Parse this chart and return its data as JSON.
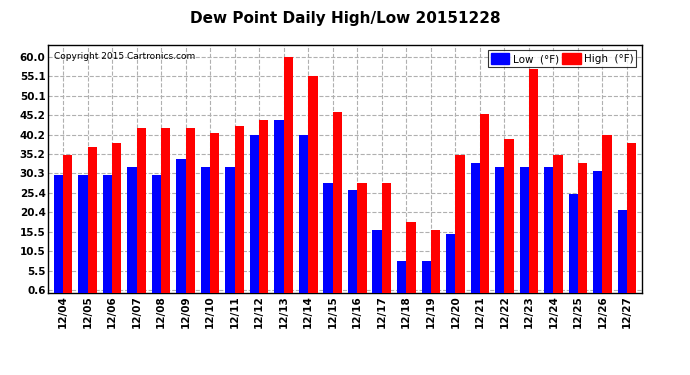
{
  "title": "Dew Point Daily High/Low 20151228",
  "copyright": "Copyright 2015 Cartronics.com",
  "dates": [
    "12/04",
    "12/05",
    "12/06",
    "12/07",
    "12/08",
    "12/09",
    "12/10",
    "12/11",
    "12/12",
    "12/13",
    "12/14",
    "12/15",
    "12/16",
    "12/17",
    "12/18",
    "12/19",
    "12/20",
    "12/21",
    "12/22",
    "12/23",
    "12/24",
    "12/25",
    "12/26",
    "12/27"
  ],
  "low": [
    30.0,
    30.0,
    30.0,
    32.0,
    30.0,
    34.0,
    32.0,
    32.0,
    40.0,
    44.0,
    40.0,
    28.0,
    26.0,
    16.0,
    8.0,
    8.0,
    15.0,
    33.0,
    32.0,
    32.0,
    32.0,
    25.0,
    31.0,
    21.0
  ],
  "high": [
    35.0,
    37.0,
    38.0,
    42.0,
    42.0,
    42.0,
    40.5,
    42.5,
    44.0,
    60.0,
    55.0,
    46.0,
    28.0,
    28.0,
    18.0,
    16.0,
    35.0,
    45.5,
    39.0,
    57.0,
    35.0,
    33.0,
    40.0,
    38.0
  ],
  "low_color": "#0000ff",
  "high_color": "#ff0000",
  "bg_color": "#ffffff",
  "grid_color": "#b0b0b0",
  "yticks": [
    0.6,
    5.5,
    10.5,
    15.5,
    20.4,
    25.4,
    30.3,
    35.2,
    40.2,
    45.2,
    50.1,
    55.1,
    60.0
  ],
  "ylim": [
    0.0,
    63.0
  ],
  "bar_width": 0.38
}
